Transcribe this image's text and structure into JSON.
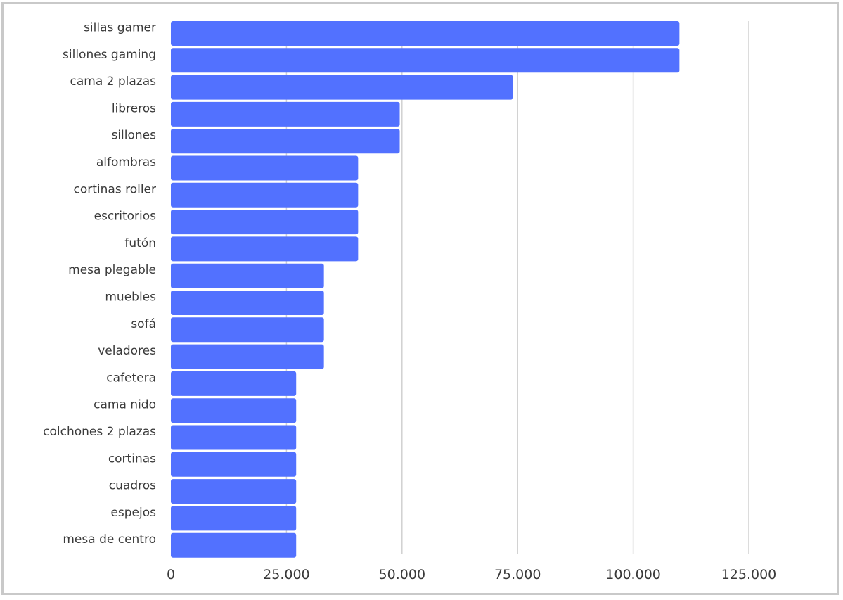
{
  "chart_data": {
    "type": "bar",
    "orientation": "horizontal",
    "categories": [
      "sillas gamer",
      "sillones gaming",
      "cama 2 plazas",
      "libreros",
      "sillones",
      "alfombras",
      "cortinas roller",
      "escritorios",
      "futón",
      "mesa plegable",
      "muebles",
      "sofá",
      "veladores",
      "cafetera",
      "cama nido",
      "colchones 2 plazas",
      "cortinas",
      "cuadros",
      "espejos",
      "mesa de centro"
    ],
    "values": [
      110000,
      110000,
      74000,
      49500,
      49500,
      40500,
      40500,
      40500,
      40500,
      33100,
      33100,
      33100,
      33100,
      27100,
      27100,
      27100,
      27100,
      27100,
      27100,
      27100
    ],
    "xlim": [
      0,
      137500
    ],
    "xticks": [
      0,
      25000,
      50000,
      75000,
      100000,
      125000
    ],
    "xtick_labels": [
      "0",
      "25.000",
      "50.000",
      "75.000",
      "100.000",
      "125.000"
    ],
    "title": "",
    "xlabel": "",
    "ylabel": "",
    "grid": "vertical",
    "legend": "none",
    "colors": {
      "bar": "#5271ff",
      "grid": "#d0d0d0",
      "text": "#3a3a3a",
      "border": "#c9c9c9"
    }
  }
}
